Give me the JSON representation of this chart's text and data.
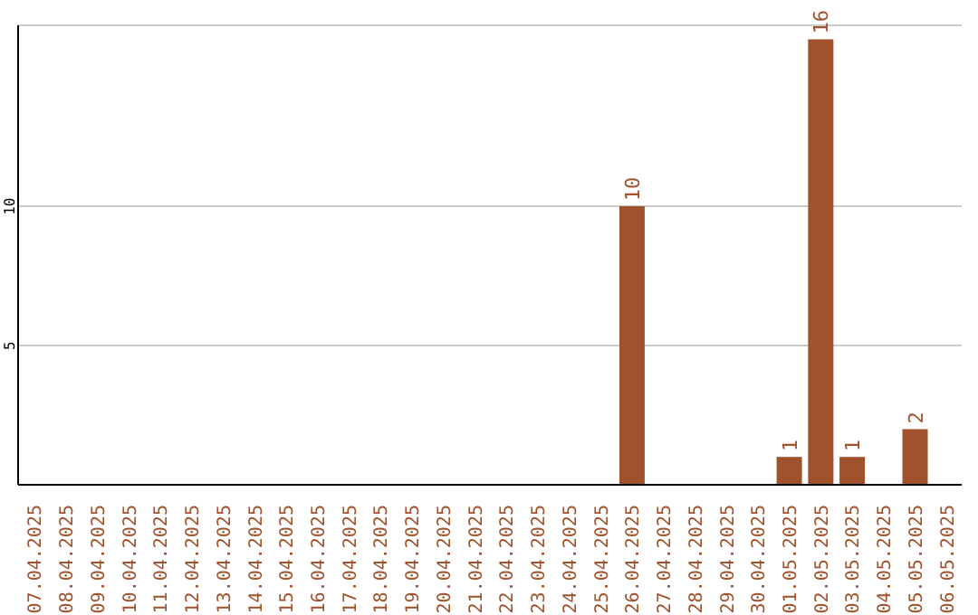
{
  "chart_data": {
    "type": "bar",
    "categories": [
      "07.04.2025",
      "08.04.2025",
      "09.04.2025",
      "10.04.2025",
      "11.04.2025",
      "12.04.2025",
      "13.04.2025",
      "14.04.2025",
      "15.04.2025",
      "16.04.2025",
      "17.04.2025",
      "18.04.2025",
      "19.04.2025",
      "20.04.2025",
      "21.04.2025",
      "22.04.2025",
      "23.04.2025",
      "24.04.2025",
      "25.04.2025",
      "26.04.2025",
      "27.04.2025",
      "28.04.2025",
      "29.04.2025",
      "30.04.2025",
      "01.05.2025",
      "02.05.2025",
      "03.05.2025",
      "04.05.2025",
      "05.05.2025",
      "06.05.2025"
    ],
    "values": [
      0,
      0,
      0,
      0,
      0,
      0,
      0,
      0,
      0,
      0,
      0,
      0,
      0,
      0,
      0,
      0,
      0,
      0,
      0,
      10,
      0,
      0,
      0,
      0,
      1,
      16,
      1,
      0,
      2,
      0
    ],
    "value_labels": [
      null,
      null,
      null,
      null,
      null,
      null,
      null,
      null,
      null,
      null,
      null,
      null,
      null,
      null,
      null,
      null,
      null,
      null,
      null,
      "10",
      null,
      null,
      null,
      null,
      "1",
      "16",
      "1",
      null,
      "2",
      null
    ],
    "color": "#a0522d",
    "ylim": [
      0,
      16.5
    ],
    "yticks": [
      5,
      10
    ],
    "grid": "y"
  }
}
